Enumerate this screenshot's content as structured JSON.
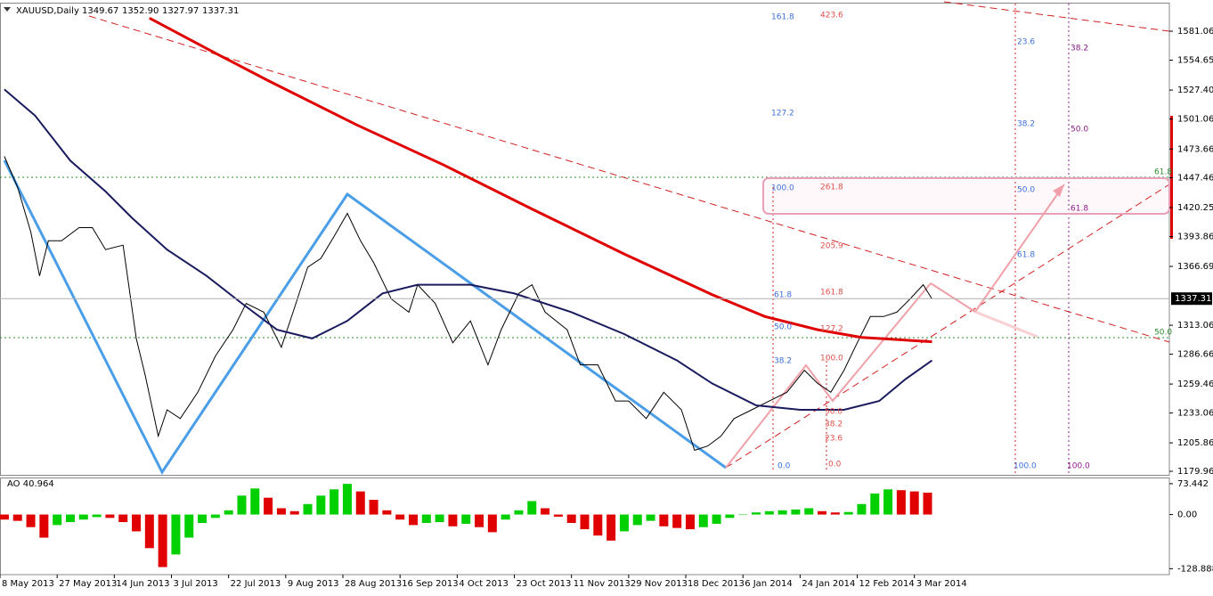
{
  "chart_data": [
    {
      "type": "line",
      "title": "XAUUSD,Daily",
      "ohlc_labels": [
        "1349.67",
        "1352.90",
        "1327.97",
        "1337.31"
      ],
      "xlim": [
        0,
        266
      ],
      "xticks": [
        {
          "value": 0,
          "label": "8 May 2013"
        },
        {
          "value": 13,
          "label": "27 May 2013"
        },
        {
          "value": 26,
          "label": "14 Jun 2013"
        },
        {
          "value": 39,
          "label": "3 Jul 2013"
        },
        {
          "value": 52,
          "label": "22 Jul 2013"
        },
        {
          "value": 65,
          "label": "9 Aug 2013"
        },
        {
          "value": 78,
          "label": "28 Aug 2013"
        },
        {
          "value": 91,
          "label": "16 Sep 2013"
        },
        {
          "value": 104,
          "label": "4 Oct 2013"
        },
        {
          "value": 117,
          "label": "23 Oct 2013"
        },
        {
          "value": 130,
          "label": "11 Nov 2013"
        },
        {
          "value": 143,
          "label": "29 Nov 2013"
        },
        {
          "value": 156,
          "label": "18 Dec 2013"
        },
        {
          "value": 169,
          "label": "6 Jan 2014"
        },
        {
          "value": 182,
          "label": "24 Jan 2014"
        },
        {
          "value": 195,
          "label": "12 Feb 2014"
        },
        {
          "value": 208,
          "label": "3 Mar 2014"
        }
      ],
      "ylim": [
        1176.7,
        1603
      ],
      "yticks": [
        1581.06,
        1554.65,
        {
          "value": 1527.4,
          "label": "1527.40"
        },
        1501.06,
        1473.66,
        1447.46,
        1420.25,
        1393.86,
        1366.69,
        1313.06,
        1286.66,
        1259.46,
        1233.06,
        1205.86,
        1179.96
      ],
      "last_price": 1337.31,
      "series": [
        {
          "color": "#000000",
          "width": 1,
          "x": [
            1,
            4,
            7,
            9,
            11,
            14,
            18,
            21,
            24,
            28,
            31,
            33,
            36,
            38,
            41,
            45,
            49,
            53,
            56,
            60,
            64,
            67,
            70,
            73,
            76,
            79,
            82,
            85,
            89,
            93,
            95,
            99,
            103,
            107,
            111,
            114,
            118,
            121,
            124,
            129,
            132,
            136,
            140,
            143,
            147,
            151,
            155,
            158,
            161,
            164,
            167,
            171,
            175,
            179,
            183,
            186,
            189,
            192,
            195,
            198,
            201,
            204,
            207,
            210,
            212
          ],
          "values": [
            1467,
            1439,
            1398,
            1358,
            1390,
            1390,
            1402,
            1402,
            1382,
            1386,
            1301,
            1268,
            1212,
            1236,
            1228,
            1252,
            1285,
            1309,
            1333,
            1325,
            1293,
            1329,
            1366,
            1374,
            1394,
            1415,
            1390,
            1370,
            1337,
            1325,
            1350,
            1333,
            1297,
            1317,
            1277,
            1309,
            1342,
            1350,
            1325,
            1309,
            1277,
            1277,
            1244,
            1244,
            1228,
            1252,
            1236,
            1199,
            1203,
            1212,
            1228,
            1236,
            1244,
            1252,
            1272,
            1260,
            1252,
            1272,
            1297,
            1321,
            1321,
            1325,
            1337,
            1350,
            1337
          ]
        },
        {
          "color": "#e00000",
          "width": 3,
          "x": [
            34,
            49,
            61,
            81,
            101,
            121,
            142,
            162,
            174,
            186,
            196,
            212
          ],
          "values": [
            1593,
            1561,
            1536,
            1496,
            1459,
            1419,
            1378,
            1341,
            1321,
            1309,
            1302,
            1298
          ]
        },
        {
          "color": "#1a1a5e",
          "width": 2,
          "x": [
            1,
            8,
            16,
            24,
            30,
            38,
            47,
            55,
            63,
            71,
            79,
            87,
            95,
            107,
            117,
            130,
            142,
            154,
            162,
            172,
            182,
            192,
            200,
            206,
            212
          ],
          "values": [
            1528,
            1504,
            1463,
            1435,
            1411,
            1382,
            1358,
            1333,
            1309,
            1301,
            1317,
            1342,
            1350,
            1350,
            1342,
            1325,
            1305,
            1281,
            1260,
            1240,
            1236,
            1236,
            1244,
            1264,
            1281
          ]
        }
      ],
      "fib_labels": [
        [
          "0.0",
          "38.2",
          "50.0",
          "61.8",
          "100.0",
          "127.2",
          "161.8"
        ],
        [
          "0.0",
          "23.6",
          "38.2",
          "50.0",
          "100.0",
          "127.2",
          "161.8",
          "205.9",
          "261.8",
          "423.6"
        ],
        [
          "100.0",
          "61.8",
          "50.0",
          "38.2",
          "23.6"
        ],
        [
          "100.0",
          "61.8",
          "50.0",
          "38.2"
        ],
        [
          "61.8",
          "50.0"
        ]
      ]
    },
    {
      "type": "bar",
      "title": "AO 40.964",
      "ylim": [
        -143,
        86
      ],
      "yticks": [
        73.442,
        {
          "value": 0,
          "label": "0.00"
        },
        -128.888
      ],
      "up_color": "#00d000",
      "down_color": "#e00000",
      "x": [
        1,
        4,
        7,
        10,
        13,
        16,
        19,
        22,
        25,
        28,
        31,
        34,
        37,
        40,
        43,
        46,
        49,
        52,
        55,
        58,
        61,
        64,
        67,
        70,
        73,
        76,
        79,
        82,
        85,
        88,
        91,
        94,
        97,
        100,
        103,
        106,
        109,
        112,
        115,
        118,
        121,
        124,
        127,
        130,
        133,
        136,
        139,
        142,
        145,
        148,
        151,
        154,
        157,
        160,
        163,
        166,
        169,
        172,
        175,
        178,
        181,
        184,
        187,
        190,
        193,
        196,
        199,
        202,
        205,
        208,
        211
      ],
      "values": [
        -12,
        -15,
        -30,
        -55,
        -25,
        -18,
        -12,
        -6,
        -8,
        -18,
        -40,
        -80,
        -125,
        -95,
        -55,
        -20,
        -8,
        10,
        45,
        62,
        40,
        15,
        8,
        25,
        45,
        60,
        73,
        55,
        35,
        10,
        -12,
        -25,
        -20,
        -18,
        -28,
        -22,
        -30,
        -42,
        -12,
        10,
        32,
        15,
        -5,
        -20,
        -35,
        -50,
        -62,
        -40,
        -25,
        -15,
        -28,
        -32,
        -35,
        -30,
        -22,
        -8,
        0,
        5,
        8,
        10,
        12,
        15,
        8,
        5,
        6,
        25,
        50,
        60,
        58,
        55,
        52
      ]
    }
  ]
}
